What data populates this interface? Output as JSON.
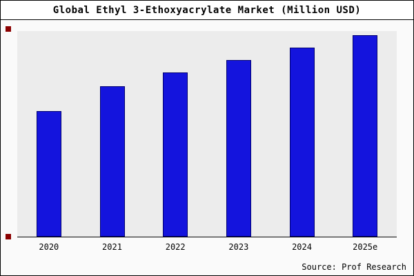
{
  "window": {
    "title": "Global Ethyl 3-Ethoxyacrylate Market (Million USD)"
  },
  "source": {
    "text": "Source: Prof Research"
  },
  "colors": {
    "bar_fill": "#1414dd",
    "bar_border": "#000070",
    "panel_background": "#ececec",
    "marker_red": "#8b0000",
    "axis": "#000000"
  },
  "chart_data": {
    "type": "bar",
    "title": "Global Ethyl 3-Ethoxyacrylate Market (Million USD)",
    "categories": [
      "2020",
      "2021",
      "2022",
      "2023",
      "2024",
      "2025e"
    ],
    "values": [
      61,
      73,
      80,
      86,
      92,
      98
    ],
    "xlabel": "",
    "ylabel": "",
    "ylim": [
      0,
      100
    ],
    "grid": false,
    "legend": false,
    "note_values_are_estimated_relative_heights_percent": true
  }
}
